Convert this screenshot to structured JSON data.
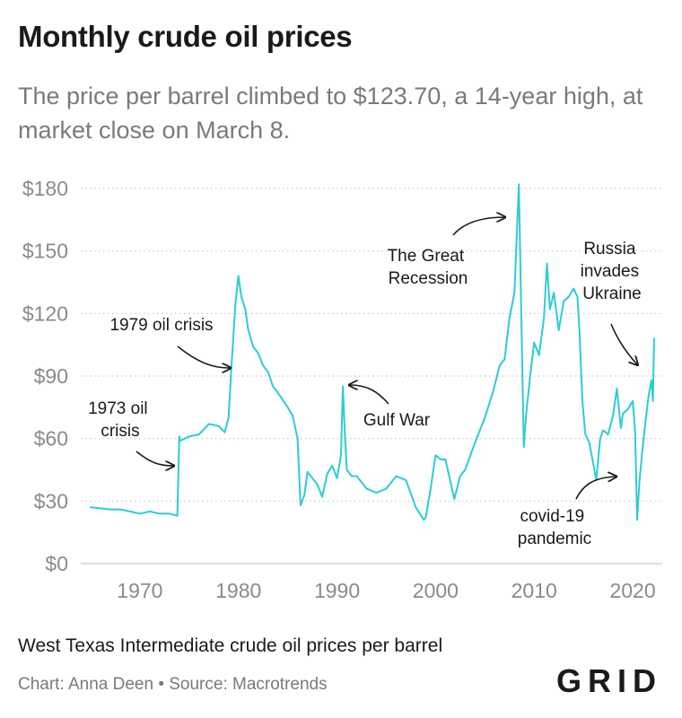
{
  "title": "Monthly crude oil prices",
  "subtitle": "The price per barrel climbed to $123.70, a 14-year high, at market close on March 8.",
  "caption": "West Texas Intermediate crude oil prices per barrel",
  "credit": "Chart: Anna Deen • Source: Macrotrends",
  "logo": "GRID",
  "colors": {
    "line": "#2ecbd6",
    "grid": "#c9c9c9",
    "text": "#1a1a1a",
    "muted": "#8a8a8a"
  },
  "chart_data": {
    "type": "line",
    "title": "Monthly crude oil prices",
    "xlabel": "",
    "ylabel": "",
    "xlim": [
      1964,
      2023
    ],
    "ylim": [
      0,
      180
    ],
    "x_ticks": [
      1970,
      1980,
      1990,
      2000,
      2010,
      2020
    ],
    "x_tick_labels": [
      "1970",
      "1980",
      "1990",
      "2000",
      "2010",
      "2020"
    ],
    "y_ticks": [
      0,
      30,
      60,
      90,
      120,
      150,
      180
    ],
    "y_tick_labels": [
      "$0",
      "$30",
      "$60",
      "$90",
      "$120",
      "$150",
      "$180"
    ],
    "grid": "horizontal dotted",
    "series": [
      {
        "name": "",
        "x": [
          1965,
          1967,
          1968,
          1969,
          1970,
          1971,
          1972,
          1973,
          1973.8,
          1974.0,
          1974.1,
          1975,
          1976,
          1977,
          1978,
          1978.6,
          1979.0,
          1979.3,
          1979.7,
          1980.0,
          1980.3,
          1980.7,
          1981.0,
          1981.5,
          1982,
          1982.5,
          1983,
          1983.5,
          1984,
          1985,
          1985.5,
          1986.0,
          1986.3,
          1986.7,
          1987,
          1988,
          1988.5,
          1989,
          1989.5,
          1990.0,
          1990.4,
          1990.6,
          1990.8,
          1991.0,
          1991.5,
          1992,
          1993,
          1994,
          1995,
          1996,
          1997,
          1998,
          1998.8,
          1999.0,
          1999.5,
          2000,
          2000.5,
          2001,
          2001.9,
          2002.5,
          2003,
          2004,
          2005,
          2005.8,
          2006.5,
          2007,
          2007.5,
          2008.0,
          2008.45,
          2008.7,
          2008.95,
          2009.2,
          2009.6,
          2010,
          2010.5,
          2011.0,
          2011.3,
          2011.6,
          2012,
          2012.5,
          2013,
          2013.5,
          2014.0,
          2014.4,
          2014.6,
          2014.9,
          2015.2,
          2015.6,
          2016.0,
          2016.3,
          2016.7,
          2017,
          2017.5,
          2018,
          2018.4,
          2018.8,
          2019,
          2019.5,
          2020.0,
          2020.25,
          2020.45,
          2020.7,
          2021.0,
          2021.3,
          2021.6,
          2021.9,
          2022.05,
          2022.17
        ],
        "values": [
          27,
          26,
          26,
          25,
          24,
          25,
          24,
          24,
          23,
          61,
          59,
          61,
          62,
          67,
          66,
          63,
          70,
          95,
          125,
          138,
          128,
          122,
          112,
          104,
          101,
          95,
          92,
          85,
          82,
          75,
          71,
          60,
          28,
          33,
          44,
          38,
          32,
          43,
          47,
          41,
          52,
          85,
          62,
          45,
          42,
          42,
          36,
          34,
          36,
          42,
          40,
          27,
          21,
          22,
          36,
          52,
          50,
          50,
          31,
          42,
          45,
          58,
          70,
          82,
          95,
          98,
          118,
          130,
          182,
          120,
          56,
          72,
          90,
          106,
          100,
          118,
          144,
          122,
          130,
          112,
          126,
          128,
          132,
          128,
          112,
          78,
          62,
          58,
          48,
          40,
          60,
          64,
          62,
          71,
          84,
          65,
          72,
          74,
          78,
          63,
          21,
          40,
          55,
          68,
          80,
          88,
          78,
          108
        ]
      }
    ],
    "annotations": [
      {
        "lines": [
          "1973 oil",
          "crisis"
        ],
        "x": 1974,
        "y": 61
      },
      {
        "lines": [
          "1979 oil crisis"
        ],
        "x": 1979.5,
        "y": 93
      },
      {
        "lines": [
          "Gulf War"
        ],
        "x": 1990.6,
        "y": 85
      },
      {
        "lines": [
          "The Great",
          "Recession"
        ],
        "x": 2008.5,
        "y": 168
      },
      {
        "lines": [
          "Russia",
          "invades",
          "Ukraine"
        ],
        "x": 2022.0,
        "y": 95
      },
      {
        "lines": [
          "covid-19",
          "pandemic"
        ],
        "x": 2020.1,
        "y": 42
      }
    ]
  }
}
